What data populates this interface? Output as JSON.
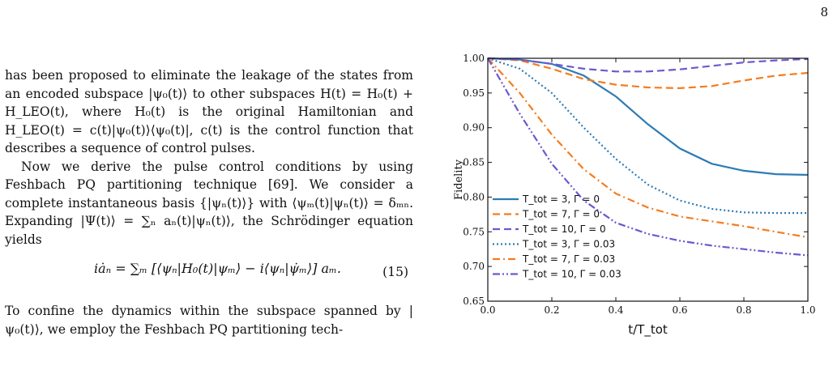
{
  "page_number": "8",
  "text": {
    "p1": "has been proposed to eliminate the leakage of the states from an encoded subspace |ψ₀(t)⟩ to other subspaces H(t) = H₀(t) + H_LEO(t), where H₀(t) is the original Hamiltonian and H_LEO(t) = c(t)|ψ₀(t)⟩⟨ψ₀(t)|, c(t) is the control function that describes a sequence of control pulses.",
    "p2": "Now we derive the pulse control conditions by using Feshbach PQ partitioning technique [69]. We consider a complete instantaneous basis {|ψₙ(t)⟩} with ⟨ψₘ(t)|ψₙ(t)⟩ = δₘₙ. Expanding |Ψ(t)⟩ = ∑ₙ aₙ(t)|ψₙ(t)⟩, the Schrödinger equation yields",
    "equation": "iȧₙ = ∑ₘ [⟨ψₙ|H₀(t)|ψₘ⟩ − i⟨ψₙ|ψ̇ₘ⟩] aₘ.",
    "equation_number": "(15)",
    "p3": "To confine the dynamics within the subspace spanned by |ψ₀(t)⟩, we employ the Feshbach PQ partitioning tech-"
  },
  "chart_data": {
    "type": "line",
    "xlabel": "t/T_tot",
    "ylabel": "Fidelity",
    "xlim": [
      0.0,
      1.0
    ],
    "ylim": [
      0.65,
      1.0
    ],
    "xticks": [
      "0.0",
      "0.2",
      "0.4",
      "0.6",
      "0.8",
      "1.0"
    ],
    "yticks": [
      "0.65",
      "0.70",
      "0.75",
      "0.80",
      "0.85",
      "0.90",
      "0.95",
      "1.00"
    ],
    "legend_position": "lower-left",
    "x": [
      0.0,
      0.1,
      0.2,
      0.3,
      0.4,
      0.5,
      0.6,
      0.7,
      0.8,
      0.9,
      1.0
    ],
    "series": [
      {
        "name": "T_tot = 3,  Γ = 0",
        "color": "#2c7bb6",
        "dash": "solid",
        "values": [
          1.0,
          0.998,
          0.992,
          0.975,
          0.945,
          0.905,
          0.87,
          0.848,
          0.838,
          0.833,
          0.832
        ]
      },
      {
        "name": "T_tot = 7,  Γ = 0",
        "color": "#f57c1f",
        "dash": "dash",
        "values": [
          1.0,
          0.997,
          0.985,
          0.97,
          0.962,
          0.958,
          0.957,
          0.96,
          0.968,
          0.975,
          0.979
        ]
      },
      {
        "name": "T_tot = 10,  Γ = 0",
        "color": "#6a5acd",
        "dash": "dash",
        "values": [
          1.0,
          0.998,
          0.992,
          0.985,
          0.981,
          0.981,
          0.984,
          0.989,
          0.994,
          0.997,
          0.999
        ]
      },
      {
        "name": "T_tot = 3,  Γ = 0.03",
        "color": "#2c7bb6",
        "dash": "dot",
        "values": [
          1.0,
          0.985,
          0.95,
          0.9,
          0.855,
          0.818,
          0.795,
          0.783,
          0.778,
          0.777,
          0.777
        ]
      },
      {
        "name": "T_tot = 7,  Γ = 0.03",
        "color": "#f57c1f",
        "dash": "dashdot",
        "values": [
          1.0,
          0.95,
          0.89,
          0.84,
          0.805,
          0.785,
          0.772,
          0.765,
          0.758,
          0.75,
          0.742
        ]
      },
      {
        "name": "T_tot = 10,  Γ = 0.03",
        "color": "#6a5acd",
        "dash": "dashdotdot",
        "values": [
          1.0,
          0.92,
          0.848,
          0.795,
          0.763,
          0.747,
          0.737,
          0.73,
          0.725,
          0.72,
          0.716
        ]
      }
    ]
  }
}
